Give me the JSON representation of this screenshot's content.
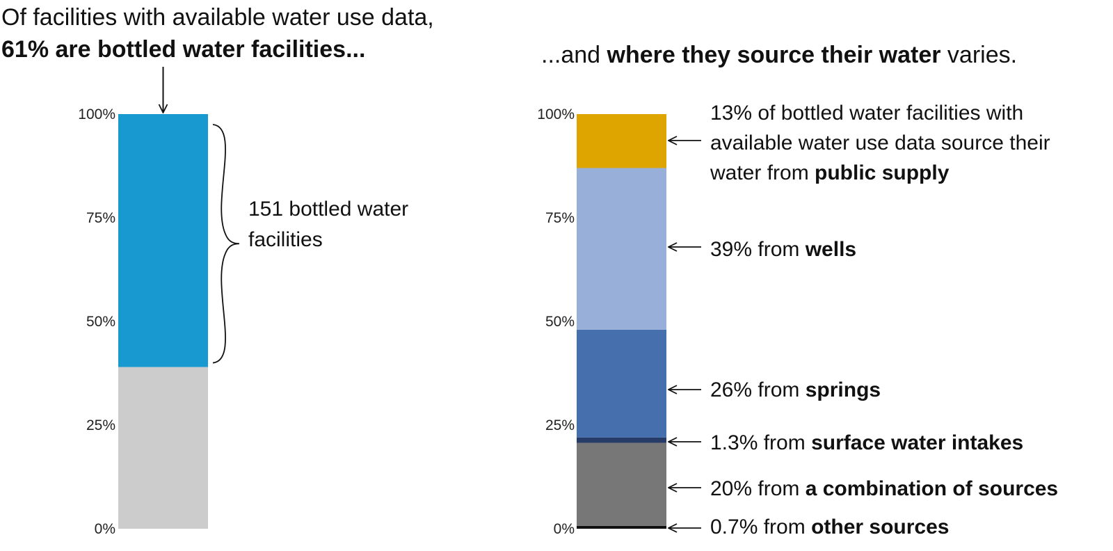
{
  "headings": {
    "left_line1": "Of facilities with available water use data,",
    "left_line2": "61% are bottled water facilities...",
    "right_prefix": "...and ",
    "right_bold": "where they source their water",
    "right_suffix": " varies."
  },
  "chart_data": [
    {
      "type": "bar",
      "stacked": true,
      "ylim": [
        0,
        100
      ],
      "yticks": [
        "0%",
        "25%",
        "50%",
        "75%",
        "100%"
      ],
      "categories": [
        ""
      ],
      "series": [
        {
          "values": [
            39
          ],
          "color": "#cccccc"
        },
        {
          "values": [
            61
          ],
          "color": "#1899d0"
        }
      ],
      "annotation": [
        "151 bottled water",
        "facilities"
      ]
    },
    {
      "type": "bar",
      "stacked": true,
      "ylim": [
        0,
        100
      ],
      "yticks": [
        "0%",
        "25%",
        "50%",
        "75%",
        "100%"
      ],
      "categories": [
        ""
      ],
      "series": [
        {
          "name": "other sources",
          "values": [
            0.7
          ],
          "color": "#111111",
          "label": [
            {
              "t": "0.7% from ",
              "b": false
            },
            {
              "t": "other sources",
              "b": true
            }
          ]
        },
        {
          "name": "a combination of sources",
          "values": [
            20
          ],
          "color": "#777777",
          "label": [
            {
              "t": "20% from ",
              "b": false
            },
            {
              "t": "a combination of sources",
              "b": true
            }
          ]
        },
        {
          "name": "surface water intakes",
          "values": [
            1.3
          ],
          "color": "#263c66",
          "label": [
            {
              "t": "1.3% from ",
              "b": false
            },
            {
              "t": "surface water intakes",
              "b": true
            }
          ]
        },
        {
          "name": "springs",
          "values": [
            26
          ],
          "color": "#456fad",
          "label": [
            {
              "t": "26% from ",
              "b": false
            },
            {
              "t": "springs",
              "b": true
            }
          ]
        },
        {
          "name": "wells",
          "values": [
            39
          ],
          "color": "#98b0d9",
          "label": [
            {
              "t": "39% from ",
              "b": false
            },
            {
              "t": "wells",
              "b": true
            }
          ]
        },
        {
          "name": "public supply",
          "values": [
            13
          ],
          "color": "#dea500",
          "label": [
            [
              {
                "t": "13% of bottled water facilities with",
                "b": false
              }
            ],
            [
              {
                "t": "available water use data source their",
                "b": false
              }
            ],
            [
              {
                "t": "water from ",
                "b": false
              },
              {
                "t": "public supply",
                "b": true
              }
            ]
          ]
        }
      ]
    }
  ]
}
